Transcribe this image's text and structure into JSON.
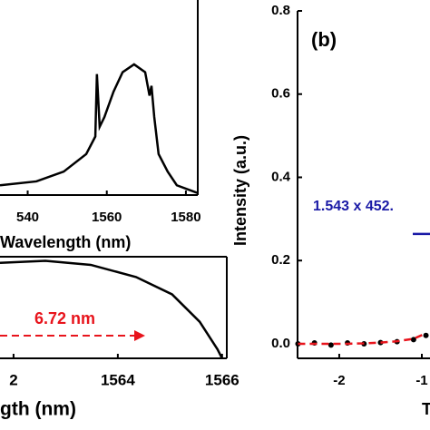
{
  "chart_data": [
    {
      "type": "line",
      "xlabel": "Wavelength (nm)",
      "color": "#000000",
      "x": [
        1533,
        1542.2,
        1549.1,
        1554.8,
        1557.1,
        1557.5,
        1558.2,
        1559.4,
        1561.7,
        1564,
        1566.9,
        1569.7,
        1570.8,
        1571.3,
        1572,
        1573.1,
        1575.4,
        1577.7,
        1583
      ],
      "values": [
        0.05,
        0.07,
        0.12,
        0.21,
        0.3,
        0.62,
        0.35,
        0.4,
        0.53,
        0.63,
        0.67,
        0.63,
        0.51,
        0.56,
        0.4,
        0.21,
        0.12,
        0.05,
        0.01
      ],
      "xlim": [
        1533,
        1583
      ],
      "ylim": [
        0,
        1
      ],
      "xticks": [
        {
          "value": 1540,
          "label": "540"
        },
        1560,
        1580
      ]
    },
    {
      "type": "line",
      "xlabel": "gth (nm)",
      "color": "#000000",
      "x": [
        1561.74,
        1562.61,
        1563.48,
        1564.35,
        1565.04,
        1565.57,
        1565.91,
        1566
      ],
      "values": [
        0.94,
        0.96,
        0.92,
        0.8,
        0.63,
        0.36,
        0.09,
        0
      ],
      "xlim": [
        1561.74,
        1566.09
      ],
      "ylim": [
        0,
        1
      ],
      "xticks": [
        {
          "value": 1562,
          "label": "2"
        },
        1564,
        1566
      ],
      "annotation": "6.72 nm",
      "annotation_color": "#e8141c"
    },
    {
      "type": "scatter",
      "title": "(b)",
      "xlabel": "T",
      "ylabel": "Intensity (a.u.)",
      "x": [
        -2.5,
        -2.3,
        -2.1,
        -1.9,
        -1.7,
        -1.5,
        -1.3,
        -1.1,
        -0.95
      ],
      "series": [
        {
          "color": "#000000",
          "values": [
            0,
            0.002,
            -0.003,
            0.002,
            0,
            0.003,
            0.005,
            0.01,
            0.02
          ]
        },
        {
          "color": "#e8141c",
          "values": [
            0,
            0,
            0,
            0,
            0.001,
            0.003,
            0.006,
            0.012,
            0.025
          ]
        }
      ],
      "xlim": [
        -2.505,
        -0.901
      ],
      "ylim": [
        -0.035,
        0.8
      ],
      "xticks": [
        -2,
        -1
      ],
      "yticks": [
        {
          "value": 0,
          "label": "0.0"
        },
        {
          "value": 0.2,
          "label": "0.2"
        },
        {
          "value": 0.4,
          "label": "0.4"
        },
        {
          "value": 0.6,
          "label": "0.6"
        },
        {
          "value": 0.8,
          "label": "0.8"
        }
      ],
      "annotation": "1.543 x 452.",
      "annotation_color": "#1a1aa6",
      "marker_y": 0.264
    }
  ]
}
